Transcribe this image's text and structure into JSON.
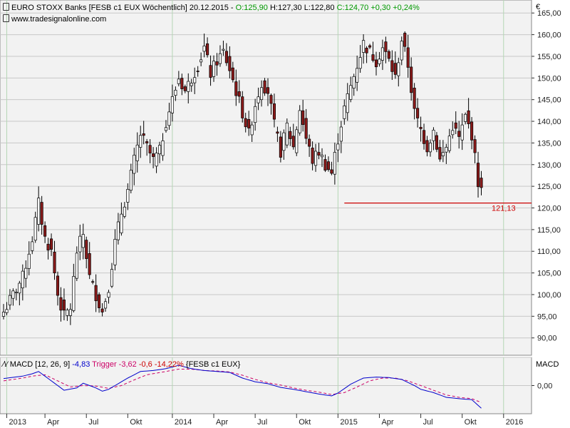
{
  "header": {
    "line1_prefix": "EURO STOXX Banks [FESB c1 EUX  Wöchentlich] 20.12.2015 - ",
    "open": "O:125,90",
    "high": "H:127,30",
    "low": "L:122,80",
    "close": "C:124,70",
    "change": "+0,30",
    "change_pct": "+0,24%",
    "watermark": "www.tradesignalonline.com",
    "currency": "€"
  },
  "macd_legend": {
    "label": "MACD [12, 26, 9]",
    "macd": "-4,83",
    "trigger_label": "Trigger",
    "trigger": "-3,62",
    "diff": "-0,6",
    "diff_pct": "-14,22%",
    "instrument": "{FESB c1 EUX}",
    "axis_label": "MACD",
    "axis_zero": "0,00"
  },
  "colors": {
    "up": "#ffffff",
    "down": "#8b1a1a",
    "macd": "#0000cc",
    "trigger": "#cc0066",
    "support": "#cc0000",
    "grid": "#c8c8c8",
    "plot_bg": "#f2f2f2",
    "green": "#009900"
  },
  "chart_data": {
    "type": "candlestick",
    "price_axis": {
      "ticks": [
        90,
        95,
        100,
        105,
        110,
        115,
        120,
        125,
        130,
        135,
        140,
        145,
        150,
        155,
        160,
        165
      ],
      "tick_labels": [
        "90,00",
        "95,00",
        "100,00",
        "105,00",
        "110,00",
        "115,00",
        "120,00",
        "125,00",
        "130,00",
        "135,00",
        "140,00",
        "145,00",
        "150,00",
        "155,00",
        "160,00",
        "165,00"
      ],
      "range": [
        86,
        168
      ]
    },
    "x_labels": [
      "2013",
      "Apr",
      "Jul",
      "Okt",
      "2014",
      "Apr",
      "Jul",
      "Okt",
      "2015",
      "Apr",
      "Jul",
      "Okt",
      "2016"
    ],
    "close_path": [
      [
        0,
        96
      ],
      [
        3,
        100
      ],
      [
        6,
        104
      ],
      [
        9,
        113
      ],
      [
        11,
        121
      ],
      [
        13,
        113
      ],
      [
        15,
        110
      ],
      [
        17,
        100
      ],
      [
        19,
        95
      ],
      [
        21,
        97
      ],
      [
        23,
        110
      ],
      [
        25,
        114
      ],
      [
        27,
        104
      ],
      [
        29,
        100
      ],
      [
        31,
        96
      ],
      [
        33,
        102
      ],
      [
        35,
        112
      ],
      [
        37,
        119
      ],
      [
        39,
        124
      ],
      [
        41,
        131
      ],
      [
        43,
        137
      ],
      [
        45,
        134
      ],
      [
        47,
        131
      ],
      [
        49,
        133
      ],
      [
        51,
        140
      ],
      [
        53,
        145
      ],
      [
        55,
        150
      ],
      [
        57,
        147
      ],
      [
        59,
        150
      ],
      [
        61,
        153
      ],
      [
        63,
        157
      ],
      [
        65,
        151
      ],
      [
        67,
        154
      ],
      [
        69,
        156
      ],
      [
        71,
        152
      ],
      [
        73,
        147
      ],
      [
        75,
        142
      ],
      [
        77,
        137
      ],
      [
        79,
        144
      ],
      [
        81,
        149
      ],
      [
        83,
        147
      ],
      [
        85,
        139
      ],
      [
        87,
        133
      ],
      [
        89,
        139
      ],
      [
        91,
        134
      ],
      [
        93,
        143
      ],
      [
        95,
        136
      ],
      [
        97,
        131
      ],
      [
        99,
        133
      ],
      [
        101,
        130
      ],
      [
        103,
        128
      ],
      [
        105,
        136
      ],
      [
        107,
        143
      ],
      [
        109,
        148
      ],
      [
        111,
        153
      ],
      [
        113,
        158
      ],
      [
        115,
        156
      ],
      [
        117,
        154
      ],
      [
        119,
        157
      ],
      [
        121,
        154
      ],
      [
        123,
        150
      ],
      [
        125,
        159
      ],
      [
        127,
        153
      ],
      [
        129,
        142
      ],
      [
        131,
        138
      ],
      [
        133,
        134
      ],
      [
        135,
        138
      ],
      [
        137,
        131
      ],
      [
        139,
        134
      ],
      [
        141,
        139
      ],
      [
        143,
        136
      ],
      [
        145,
        141
      ],
      [
        147,
        137
      ],
      [
        149,
        126
      ],
      [
        150,
        124.7
      ]
    ],
    "macd_path": [
      [
        0,
        1.5
      ],
      [
        6,
        2.0
      ],
      [
        9,
        2.5
      ],
      [
        11,
        3.0
      ],
      [
        13,
        2.0
      ],
      [
        17,
        0.0
      ],
      [
        19,
        -1.0
      ],
      [
        23,
        -0.5
      ],
      [
        25,
        0.5
      ],
      [
        29,
        -0.5
      ],
      [
        31,
        -1.2
      ],
      [
        33,
        -0.8
      ],
      [
        37,
        0.8
      ],
      [
        39,
        1.6
      ],
      [
        43,
        3.0
      ],
      [
        47,
        3.2
      ],
      [
        51,
        3.6
      ],
      [
        55,
        4.3
      ],
      [
        59,
        3.6
      ],
      [
        63,
        3.2
      ],
      [
        67,
        3.0
      ],
      [
        71,
        2.8
      ],
      [
        75,
        1.6
      ],
      [
        79,
        0.8
      ],
      [
        83,
        0.4
      ],
      [
        87,
        -0.4
      ],
      [
        91,
        -0.8
      ],
      [
        95,
        -1.3
      ],
      [
        99,
        -1.8
      ],
      [
        103,
        -2.2
      ],
      [
        105,
        -1.6
      ],
      [
        109,
        0.3
      ],
      [
        113,
        1.6
      ],
      [
        117,
        1.8
      ],
      [
        121,
        1.7
      ],
      [
        125,
        1.3
      ],
      [
        129,
        0.0
      ],
      [
        131,
        -0.8
      ],
      [
        135,
        -1.5
      ],
      [
        139,
        -2.5
      ],
      [
        143,
        -2.8
      ],
      [
        147,
        -3.0
      ],
      [
        150,
        -4.83
      ]
    ],
    "trigger_path": [
      [
        0,
        1.0
      ],
      [
        6,
        1.6
      ],
      [
        9,
        2.0
      ],
      [
        13,
        2.3
      ],
      [
        17,
        1.0
      ],
      [
        21,
        -0.3
      ],
      [
        25,
        0.0
      ],
      [
        29,
        -0.1
      ],
      [
        33,
        -0.6
      ],
      [
        37,
        0.0
      ],
      [
        41,
        1.2
      ],
      [
        45,
        2.3
      ],
      [
        51,
        3.0
      ],
      [
        55,
        3.5
      ],
      [
        59,
        3.5
      ],
      [
        63,
        3.2
      ],
      [
        67,
        3.1
      ],
      [
        71,
        2.9
      ],
      [
        75,
        2.2
      ],
      [
        79,
        1.3
      ],
      [
        83,
        0.6
      ],
      [
        87,
        0.1
      ],
      [
        91,
        -0.5
      ],
      [
        95,
        -1.0
      ],
      [
        99,
        -1.4
      ],
      [
        103,
        -1.9
      ],
      [
        107,
        -1.5
      ],
      [
        111,
        -0.3
      ],
      [
        115,
        1.0
      ],
      [
        119,
        1.6
      ],
      [
        123,
        1.6
      ],
      [
        127,
        1.0
      ],
      [
        131,
        0.0
      ],
      [
        135,
        -1.0
      ],
      [
        139,
        -2.0
      ],
      [
        143,
        -2.5
      ],
      [
        147,
        -2.8
      ],
      [
        150,
        -3.62
      ]
    ],
    "macd_range": [
      -6,
      6
    ],
    "support_level": 121.13,
    "support_label": "121,13",
    "last_close": 124.7
  }
}
